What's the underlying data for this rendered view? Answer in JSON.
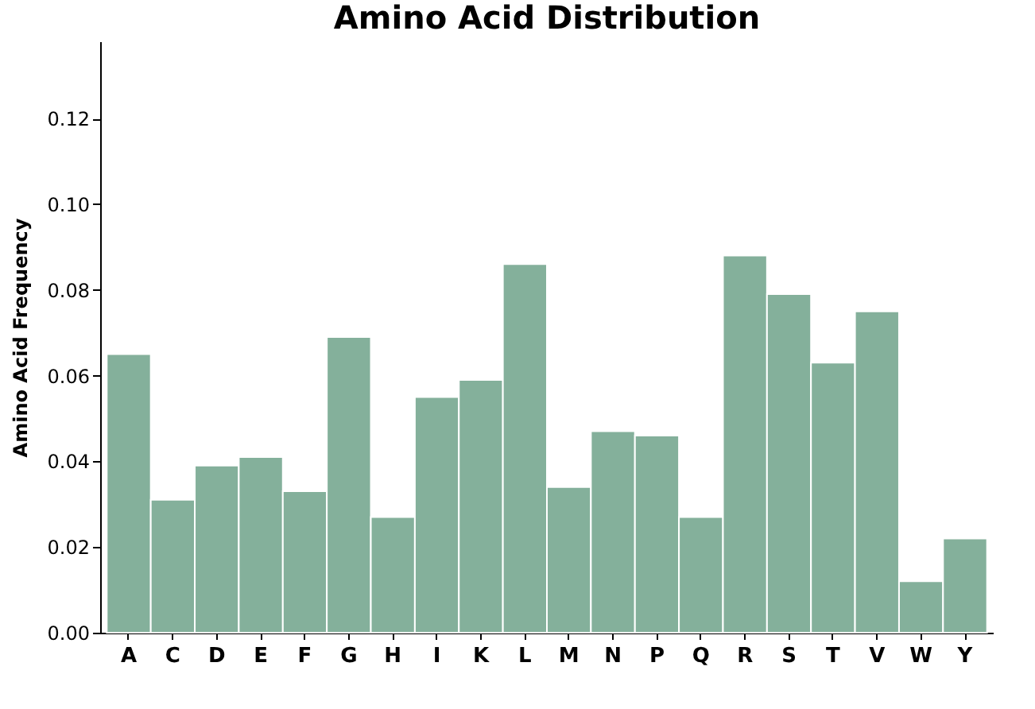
{
  "chart_data": {
    "type": "bar",
    "title": "Amino Acid Distribution",
    "ylabel": "Amino Acid Frequency",
    "categories": [
      "A",
      "C",
      "D",
      "E",
      "F",
      "G",
      "H",
      "I",
      "K",
      "L",
      "M",
      "N",
      "P",
      "Q",
      "R",
      "S",
      "T",
      "V",
      "W",
      "Y"
    ],
    "values": [
      0.065,
      0.031,
      0.039,
      0.041,
      0.033,
      0.069,
      0.027,
      0.055,
      0.059,
      0.086,
      0.034,
      0.047,
      0.046,
      0.027,
      0.088,
      0.079,
      0.063,
      0.075,
      0.012,
      0.022
    ],
    "color": "#84b09b",
    "ylim": [
      0,
      0.138
    ],
    "yticks": [
      {
        "value": 0,
        "label": "0.00"
      },
      {
        "value": 0.02,
        "label": "0.02"
      },
      {
        "value": 0.04,
        "label": "0.04"
      },
      {
        "value": 0.06,
        "label": "0.06"
      },
      {
        "value": 0.08,
        "label": "0.08"
      },
      {
        "value": 0.1,
        "label": "0.10"
      },
      {
        "value": 0.12,
        "label": "0.12"
      }
    ],
    "grid": false
  }
}
